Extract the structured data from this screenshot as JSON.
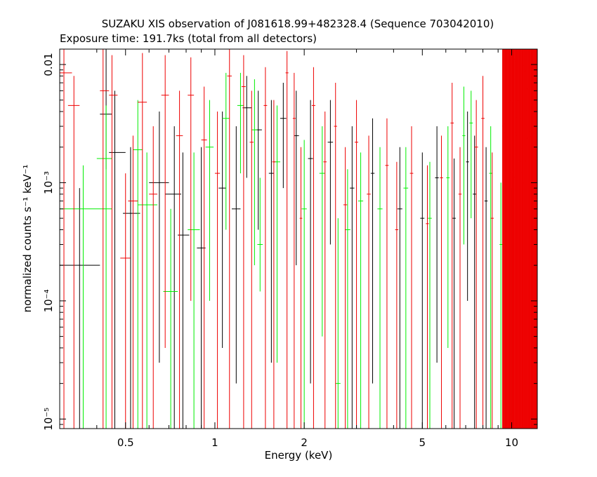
{
  "chart_data": {
    "type": "scatter",
    "title": "SUZAKU XIS observation of J081618.99+482328.4 (Sequence 703042010)",
    "subtitle": "Exposure time: 191.7ks (total from all detectors)",
    "xlabel": "Energy (keV)",
    "ylabel": "normalized counts s⁻¹ keV⁻¹",
    "xscale": "log",
    "yscale": "log",
    "xlim": [
      0.3,
      12.2
    ],
    "ylim": [
      8.3e-06,
      0.0135
    ],
    "x_ticks": [
      {
        "value": 0.5,
        "label": "0.5"
      },
      {
        "value": 1,
        "label": "1"
      },
      {
        "value": 2,
        "label": "2"
      },
      {
        "value": 5,
        "label": "5"
      },
      {
        "value": 10,
        "label": "10"
      }
    ],
    "y_ticks": [
      {
        "value": 0.01,
        "label": "0.01"
      },
      {
        "value": 0.001,
        "label": "10⁻³"
      },
      {
        "value": 0.0001,
        "label": "10⁻⁴"
      },
      {
        "value": 1e-05,
        "label": "10⁻⁵"
      }
    ],
    "grid": false,
    "legend": "none",
    "series": [
      {
        "color": "#000000",
        "points": [
          {
            "x": 0.35,
            "xerr": [
              0.3,
              0.41
            ],
            "y": 0.0002,
            "ylo": 8.3e-06,
            "yhi": 0.0009
          },
          {
            "x": 0.43,
            "xerr": [
              0.41,
              0.45
            ],
            "y": 0.0038,
            "ylo": 0.0013,
            "yhi": 0.0135
          },
          {
            "x": 0.46,
            "xerr": [
              0.44,
              0.5
            ],
            "y": 0.0018,
            "ylo": 8.3e-06,
            "yhi": 0.006
          },
          {
            "x": 0.52,
            "xerr": [
              0.49,
              0.56
            ],
            "y": 0.00055,
            "ylo": 8.3e-06,
            "yhi": 0.002
          },
          {
            "x": 0.65,
            "xerr": [
              0.6,
              0.7
            ],
            "y": 0.001,
            "ylo": 3e-05,
            "yhi": 0.004
          },
          {
            "x": 0.73,
            "xerr": [
              0.68,
              0.77
            ],
            "y": 0.0008,
            "ylo": 8.3e-06,
            "yhi": 0.003
          },
          {
            "x": 0.78,
            "xerr": [
              0.75,
              0.82
            ],
            "y": 0.00036,
            "ylo": 8.3e-06,
            "yhi": 0.0018
          },
          {
            "x": 0.9,
            "xerr": [
              0.87,
              0.93
            ],
            "y": 0.00028,
            "ylo": 8.3e-06,
            "yhi": 0.002
          },
          {
            "x": 1.06,
            "xerr": [
              1.03,
              1.09
            ],
            "y": 0.0009,
            "ylo": 4e-05,
            "yhi": 0.004
          },
          {
            "x": 1.18,
            "xerr": [
              1.14,
              1.22
            ],
            "y": 0.0006,
            "ylo": 2e-05,
            "yhi": 0.003
          },
          {
            "x": 1.28,
            "xerr": [
              1.24,
              1.33
            ],
            "y": 0.0043,
            "ylo": 0.0011,
            "yhi": 0.008
          },
          {
            "x": 1.4,
            "xerr": [
              1.37,
              1.44
            ],
            "y": 0.0028,
            "ylo": 0.0004,
            "yhi": 0.006
          },
          {
            "x": 1.55,
            "xerr": [
              1.52,
              1.58
            ],
            "y": 0.0012,
            "ylo": 3e-05,
            "yhi": 0.005
          },
          {
            "x": 1.7,
            "xerr": [
              1.66,
              1.74
            ],
            "y": 0.0035,
            "ylo": 0.0009,
            "yhi": 0.007
          },
          {
            "x": 1.88,
            "xerr": [
              1.85,
              1.92
            ],
            "y": 0.0025,
            "ylo": 0.0002,
            "yhi": 0.006
          },
          {
            "x": 2.1,
            "xerr": [
              2.06,
              2.14
            ],
            "y": 0.0016,
            "ylo": 2e-05,
            "yhi": 0.005
          },
          {
            "x": 2.45,
            "xerr": [
              2.4,
              2.5
            ],
            "y": 0.0022,
            "ylo": 0.0003,
            "yhi": 0.005
          },
          {
            "x": 2.9,
            "xerr": [
              2.85,
              2.95
            ],
            "y": 0.0009,
            "ylo": 8.3e-06,
            "yhi": 0.003
          },
          {
            "x": 3.4,
            "xerr": [
              3.35,
              3.45
            ],
            "y": 0.0012,
            "ylo": 2e-05,
            "yhi": 0.0035
          },
          {
            "x": 4.2,
            "xerr": [
              4.12,
              4.28
            ],
            "y": 0.0006,
            "ylo": 8.3e-06,
            "yhi": 0.002
          },
          {
            "x": 5.0,
            "xerr": [
              4.92,
              5.08
            ],
            "y": 0.0005,
            "ylo": 8.3e-06,
            "yhi": 0.0018
          },
          {
            "x": 5.6,
            "xerr": [
              5.52,
              5.68
            ],
            "y": 0.0011,
            "ylo": 3e-05,
            "yhi": 0.003
          },
          {
            "x": 6.4,
            "xerr": [
              6.32,
              6.48
            ],
            "y": 0.0005,
            "ylo": 8.3e-06,
            "yhi": 0.0016
          },
          {
            "x": 7.1,
            "xerr": [
              7.02,
              7.18
            ],
            "y": 0.0015,
            "ylo": 0.0001,
            "yhi": 0.004
          },
          {
            "x": 7.5,
            "xerr": [
              7.4,
              7.6
            ],
            "y": 0.0008,
            "ylo": 8.3e-06,
            "yhi": 0.0025
          },
          {
            "x": 8.2,
            "xerr": [
              8.1,
              8.3
            ],
            "y": 0.0007,
            "ylo": 8.3e-06,
            "yhi": 0.002
          }
        ]
      },
      {
        "color": "#00ee00",
        "points": [
          {
            "x": 0.36,
            "xerr": [
              0.3,
              0.45
            ],
            "y": 0.0006,
            "ylo": 8.3e-06,
            "yhi": 0.0014
          },
          {
            "x": 0.43,
            "xerr": [
              0.4,
              0.45
            ],
            "y": 0.0016,
            "ylo": 8.3e-06,
            "yhi": 0.0045
          },
          {
            "x": 0.55,
            "xerr": [
              0.53,
              0.57
            ],
            "y": 0.0019,
            "ylo": 8.3e-06,
            "yhi": 0.005
          },
          {
            "x": 0.59,
            "xerr": [
              0.55,
              0.64
            ],
            "y": 0.00065,
            "ylo": 8.3e-06,
            "yhi": 0.0018
          },
          {
            "x": 0.71,
            "xerr": [
              0.67,
              0.75
            ],
            "y": 0.00012,
            "ylo": 8.3e-06,
            "yhi": 0.0006
          },
          {
            "x": 0.85,
            "xerr": [
              0.81,
              0.89
            ],
            "y": 0.0004,
            "ylo": 8.3e-06,
            "yhi": 0.0018
          },
          {
            "x": 0.96,
            "xerr": [
              0.93,
              0.99
            ],
            "y": 0.002,
            "ylo": 0.0001,
            "yhi": 0.005
          },
          {
            "x": 1.09,
            "xerr": [
              1.06,
              1.12
            ],
            "y": 0.0035,
            "ylo": 0.0004,
            "yhi": 0.0085
          },
          {
            "x": 1.22,
            "xerr": [
              1.19,
              1.25
            ],
            "y": 0.0045,
            "ylo": 0.0012,
            "yhi": 0.0085
          },
          {
            "x": 1.36,
            "xerr": [
              1.33,
              1.39
            ],
            "y": 0.0028,
            "ylo": 0.0002,
            "yhi": 0.0075
          },
          {
            "x": 1.42,
            "xerr": [
              1.39,
              1.45
            ],
            "y": 0.0003,
            "ylo": 0.00012,
            "yhi": 0.0011
          },
          {
            "x": 1.62,
            "xerr": [
              1.58,
              1.66
            ],
            "y": 0.0015,
            "ylo": 3e-05,
            "yhi": 0.0045
          },
          {
            "x": 2.0,
            "xerr": [
              1.96,
              2.04
            ],
            "y": 0.0006,
            "ylo": 8.3e-06,
            "yhi": 0.0023
          },
          {
            "x": 2.3,
            "xerr": [
              2.25,
              2.35
            ],
            "y": 0.0012,
            "ylo": 5e-05,
            "yhi": 0.003
          },
          {
            "x": 2.6,
            "xerr": [
              2.55,
              2.65
            ],
            "y": 2e-05,
            "ylo": 8.3e-06,
            "yhi": 0.0005
          },
          {
            "x": 2.8,
            "xerr": [
              2.74,
              2.86
            ],
            "y": 0.0004,
            "ylo": 8.3e-06,
            "yhi": 0.0013
          },
          {
            "x": 3.1,
            "xerr": [
              3.04,
              3.16
            ],
            "y": 0.0007,
            "ylo": 8.3e-06,
            "yhi": 0.0018
          },
          {
            "x": 3.6,
            "xerr": [
              3.53,
              3.67
            ],
            "y": 0.0006,
            "ylo": 8.3e-06,
            "yhi": 0.002
          },
          {
            "x": 4.4,
            "xerr": [
              4.32,
              4.48
            ],
            "y": 0.0009,
            "ylo": 8.3e-06,
            "yhi": 0.002
          },
          {
            "x": 5.3,
            "xerr": [
              5.22,
              5.38
            ],
            "y": 0.0005,
            "ylo": 8.3e-06,
            "yhi": 0.0015
          },
          {
            "x": 6.1,
            "xerr": [
              6.02,
              6.18
            ],
            "y": 0.0011,
            "ylo": 4e-05,
            "yhi": 0.003
          },
          {
            "x": 6.9,
            "xerr": [
              6.82,
              6.98
            ],
            "y": 0.0025,
            "ylo": 0.0003,
            "yhi": 0.0065
          },
          {
            "x": 7.3,
            "xerr": [
              7.2,
              7.4
            ],
            "y": 0.0032,
            "ylo": 0.0005,
            "yhi": 0.006
          },
          {
            "x": 8.5,
            "xerr": [
              8.4,
              8.6
            ],
            "y": 0.0012,
            "ylo": 8.3e-06,
            "yhi": 0.003
          },
          {
            "x": 9.2,
            "xerr": [
              9.1,
              9.3
            ],
            "y": 0.0003,
            "ylo": 8.3e-06,
            "yhi": 0.001
          },
          {
            "x": 10.0,
            "xerr": [
              9.9,
              10.1
            ],
            "y": 1.1e-05,
            "ylo": 8.3e-06,
            "yhi": 0.0009
          }
        ]
      },
      {
        "color": "#ee0000",
        "points": [
          {
            "x": 0.31,
            "xerr": [
              0.3,
              0.33
            ],
            "y": 0.0085,
            "ylo": 8.3e-06,
            "yhi": 0.0135
          },
          {
            "x": 0.335,
            "xerr": [
              0.32,
              0.35
            ],
            "y": 0.0045,
            "ylo": 8.3e-06,
            "yhi": 0.008
          },
          {
            "x": 0.42,
            "xerr": [
              0.41,
              0.44
            ],
            "y": 0.006,
            "ylo": 8.3e-06,
            "yhi": 0.0135
          },
          {
            "x": 0.45,
            "xerr": [
              0.44,
              0.47
            ],
            "y": 0.0055,
            "ylo": 8.3e-06,
            "yhi": 0.012
          },
          {
            "x": 0.5,
            "xerr": [
              0.48,
              0.52
            ],
            "y": 0.00023,
            "ylo": 8.3e-06,
            "yhi": 0.0012
          },
          {
            "x": 0.53,
            "xerr": [
              0.51,
              0.55
            ],
            "y": 0.0007,
            "ylo": 8.3e-06,
            "yhi": 0.0025
          },
          {
            "x": 0.57,
            "xerr": [
              0.55,
              0.59
            ],
            "y": 0.0048,
            "ylo": 8.3e-06,
            "yhi": 0.0125
          },
          {
            "x": 0.62,
            "xerr": [
              0.6,
              0.64
            ],
            "y": 0.0008,
            "ylo": 8.3e-06,
            "yhi": 0.003
          },
          {
            "x": 0.68,
            "xerr": [
              0.66,
              0.7
            ],
            "y": 0.0055,
            "ylo": 4e-05,
            "yhi": 0.012
          },
          {
            "x": 0.76,
            "xerr": [
              0.74,
              0.78
            ],
            "y": 0.0025,
            "ylo": 8.3e-06,
            "yhi": 0.006
          },
          {
            "x": 0.83,
            "xerr": [
              0.81,
              0.85
            ],
            "y": 0.0055,
            "ylo": 0.0001,
            "yhi": 0.0115
          },
          {
            "x": 0.92,
            "xerr": [
              0.9,
              0.94
            ],
            "y": 0.0023,
            "ylo": 8.3e-06,
            "yhi": 0.0065
          },
          {
            "x": 1.02,
            "xerr": [
              1.0,
              1.04
            ],
            "y": 0.0012,
            "ylo": 8.3e-06,
            "yhi": 0.004
          },
          {
            "x": 1.12,
            "xerr": [
              1.1,
              1.14
            ],
            "y": 0.008,
            "ylo": 8.3e-06,
            "yhi": 0.0135
          },
          {
            "x": 1.25,
            "xerr": [
              1.23,
              1.27
            ],
            "y": 0.0065,
            "ylo": 8.3e-06,
            "yhi": 0.012
          },
          {
            "x": 1.33,
            "xerr": [
              1.31,
              1.35
            ],
            "y": 0.0022,
            "ylo": 8.3e-06,
            "yhi": 0.006
          },
          {
            "x": 1.48,
            "xerr": [
              1.46,
              1.5
            ],
            "y": 0.0045,
            "ylo": 8.3e-06,
            "yhi": 0.0095
          },
          {
            "x": 1.58,
            "xerr": [
              1.56,
              1.6
            ],
            "y": 0.0015,
            "ylo": 8.3e-06,
            "yhi": 0.005
          },
          {
            "x": 1.75,
            "xerr": [
              1.73,
              1.77
            ],
            "y": 0.0085,
            "ylo": 8.3e-06,
            "yhi": 0.013
          },
          {
            "x": 1.85,
            "xerr": [
              1.83,
              1.87
            ],
            "y": 0.0035,
            "ylo": 8.3e-06,
            "yhi": 0.0085
          },
          {
            "x": 1.95,
            "xerr": [
              1.93,
              1.97
            ],
            "y": 0.0005,
            "ylo": 8.3e-06,
            "yhi": 0.002
          },
          {
            "x": 2.15,
            "xerr": [
              2.12,
              2.18
            ],
            "y": 0.0045,
            "ylo": 8.3e-06,
            "yhi": 0.0095
          },
          {
            "x": 2.35,
            "xerr": [
              2.32,
              2.38
            ],
            "y": 0.0015,
            "ylo": 8.3e-06,
            "yhi": 0.004
          },
          {
            "x": 2.55,
            "xerr": [
              2.52,
              2.58
            ],
            "y": 0.003,
            "ylo": 8.3e-06,
            "yhi": 0.007
          },
          {
            "x": 2.75,
            "xerr": [
              2.71,
              2.79
            ],
            "y": 0.00065,
            "ylo": 8.3e-06,
            "yhi": 0.002
          },
          {
            "x": 3.0,
            "xerr": [
              2.96,
              3.04
            ],
            "y": 0.0022,
            "ylo": 8.3e-06,
            "yhi": 0.005
          },
          {
            "x": 3.3,
            "xerr": [
              3.25,
              3.35
            ],
            "y": 0.0008,
            "ylo": 8.3e-06,
            "yhi": 0.0025
          },
          {
            "x": 3.8,
            "xerr": [
              3.75,
              3.85
            ],
            "y": 0.0014,
            "ylo": 8.3e-06,
            "yhi": 0.0035
          },
          {
            "x": 4.1,
            "xerr": [
              4.05,
              4.15
            ],
            "y": 0.0004,
            "ylo": 8.3e-06,
            "yhi": 0.0015
          },
          {
            "x": 4.6,
            "xerr": [
              4.54,
              4.66
            ],
            "y": 0.0012,
            "ylo": 8.3e-06,
            "yhi": 0.003
          },
          {
            "x": 5.2,
            "xerr": [
              5.14,
              5.26
            ],
            "y": 0.00045,
            "ylo": 8.3e-06,
            "yhi": 0.0014
          },
          {
            "x": 5.8,
            "xerr": [
              5.73,
              5.87
            ],
            "y": 0.0011,
            "ylo": 8.3e-06,
            "yhi": 0.0025
          },
          {
            "x": 6.3,
            "xerr": [
              6.22,
              6.38
            ],
            "y": 0.0032,
            "ylo": 8.3e-06,
            "yhi": 0.007
          },
          {
            "x": 6.7,
            "xerr": [
              6.62,
              6.78
            ],
            "y": 0.0008,
            "ylo": 8.3e-06,
            "yhi": 0.002
          },
          {
            "x": 7.6,
            "xerr": [
              7.5,
              7.7
            ],
            "y": 0.002,
            "ylo": 8.3e-06,
            "yhi": 0.005
          },
          {
            "x": 8.0,
            "xerr": [
              7.9,
              8.1
            ],
            "y": 0.0035,
            "ylo": 8.3e-06,
            "yhi": 0.008
          },
          {
            "x": 8.6,
            "xerr": [
              8.5,
              8.7
            ],
            "y": 0.0005,
            "ylo": 8.3e-06,
            "yhi": 0.0018
          }
        ]
      }
    ],
    "dense_region": {
      "color": "#ee0000",
      "x_start": 9.3,
      "x_end": 12.2,
      "count": 70,
      "y_range": [
        0.0008,
        0.012
      ],
      "ylo": 8.3e-06,
      "yhi": 0.0135
    }
  }
}
